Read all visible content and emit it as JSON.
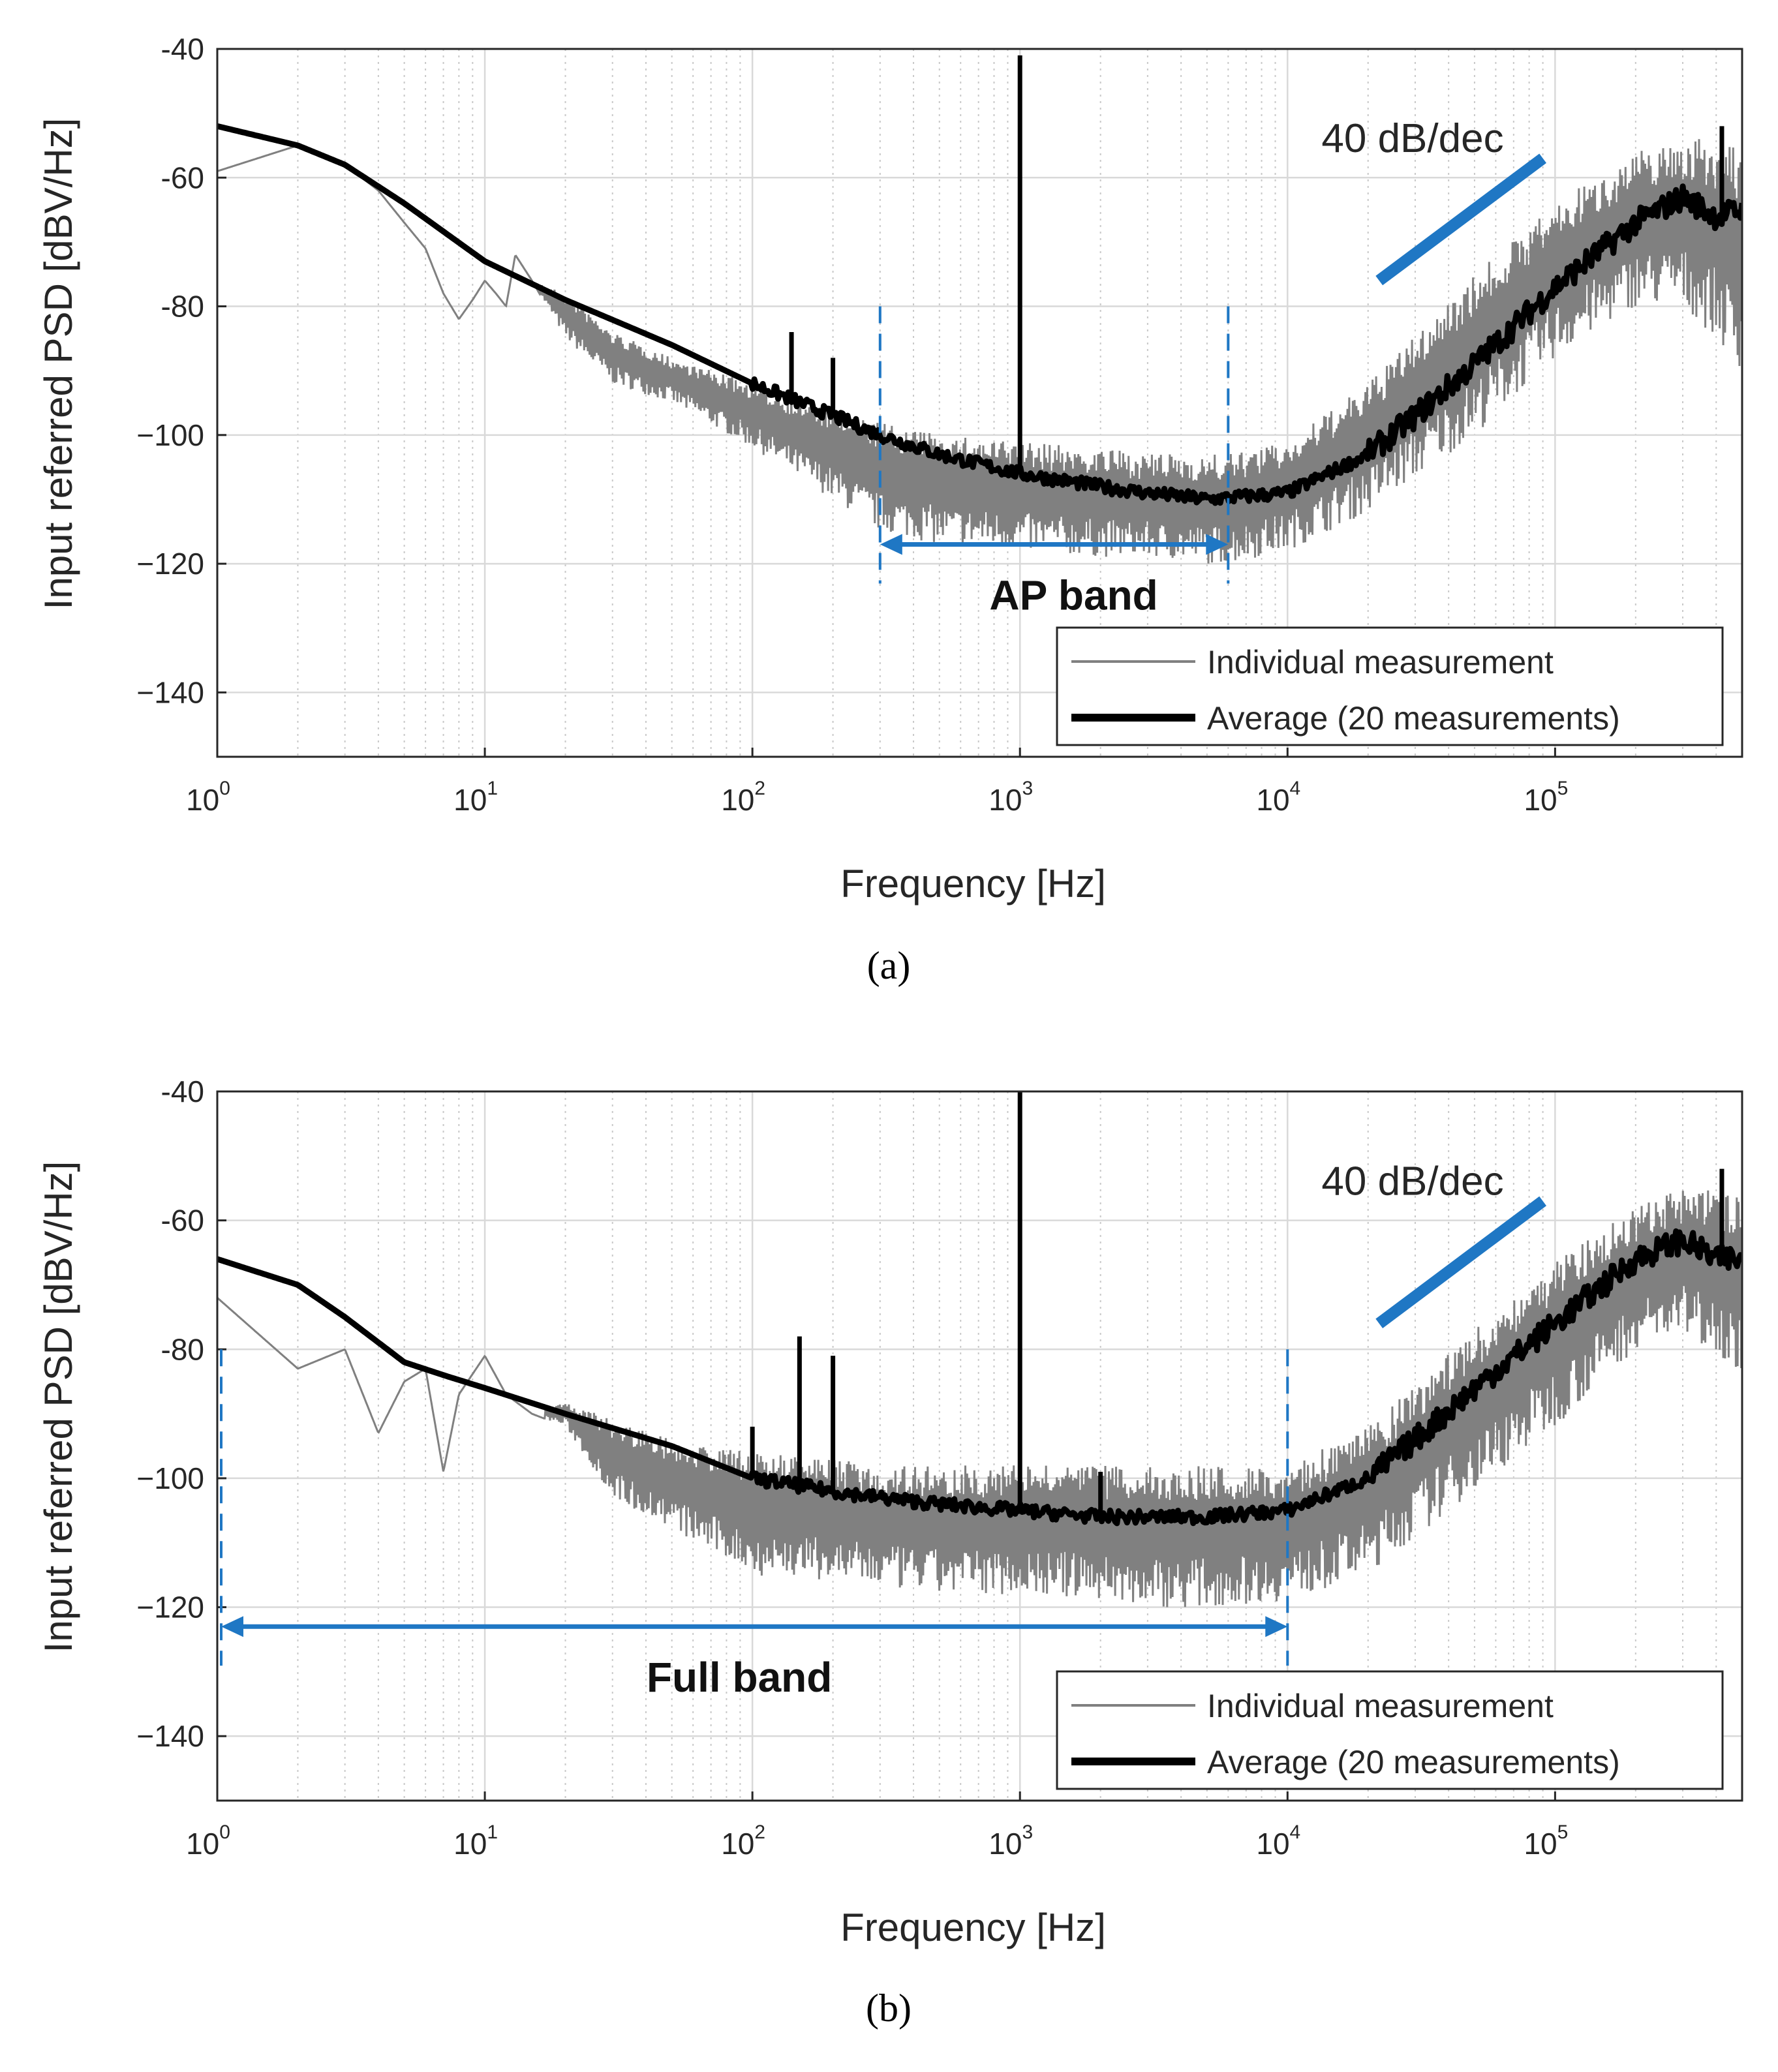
{
  "chart_data": [
    {
      "type": "line",
      "panel": "a",
      "caption": "(a)",
      "xlabel": "Frequency [Hz]",
      "ylabel": "Input referred PSD [dBV/Hz]",
      "xscale": "log",
      "xlim": [
        1,
        500000
      ],
      "ylim": [
        -150,
        -40
      ],
      "yticks": [
        -40,
        -60,
        -80,
        -100,
        -120,
        -140
      ],
      "xtick_labels": [
        {
          "base": "10",
          "exp": "0"
        },
        {
          "base": "10",
          "exp": "1"
        },
        {
          "base": "10",
          "exp": "2"
        },
        {
          "base": "10",
          "exp": "3"
        },
        {
          "base": "10",
          "exp": "4"
        },
        {
          "base": "10",
          "exp": "5"
        }
      ],
      "grid": true,
      "legend": {
        "position": "bottom-right",
        "entries": [
          "Individual measurement",
          "Average (20 measurements)"
        ]
      },
      "series": [
        {
          "name": "Individual measurement",
          "color": "#808080",
          "x": [
            1,
            2,
            3,
            4,
            5,
            6,
            7,
            8,
            9,
            10,
            11,
            12,
            13,
            15,
            20,
            30,
            50,
            100,
            200,
            300,
            500,
            1000,
            2000,
            3000,
            5000,
            6000,
            10000,
            20000,
            50000,
            100000,
            200000,
            300000,
            400000,
            500000
          ],
          "values": [
            -59,
            -55,
            -58,
            -62,
            -67,
            -71,
            -78,
            -82,
            -79,
            -76,
            -78,
            -80,
            -72,
            -76,
            -85,
            -92,
            -95,
            -102,
            -110,
            -115,
            -117,
            -118,
            -119,
            -119,
            -120,
            -120,
            -118,
            -112,
            -100,
            -88,
            -80,
            -80,
            -85,
            -90
          ],
          "band_upper": [
            -59,
            -55,
            -58,
            -62,
            -67,
            -71,
            -78,
            -82,
            -79,
            -76,
            -78,
            -80,
            -72,
            -76,
            -78,
            -84,
            -88,
            -92,
            -96,
            -98,
            -100,
            -101,
            -102,
            -103,
            -103,
            -103,
            -101,
            -92,
            -75,
            -64,
            -56,
            -54,
            -54,
            -56
          ]
        },
        {
          "name": "Average (20 measurements)",
          "color": "#000000",
          "x": [
            1,
            2,
            3,
            5,
            10,
            20,
            50,
            100,
            200,
            300,
            500,
            1000,
            2000,
            3000,
            5000,
            10000,
            20000,
            30000,
            50000,
            100000,
            200000,
            300000,
            400000,
            500000
          ],
          "values": [
            -52,
            -55,
            -58,
            -64,
            -73,
            -79,
            -86,
            -92,
            -97,
            -100,
            -103,
            -106,
            -108,
            -109,
            -110,
            -109,
            -103,
            -97,
            -89,
            -77,
            -67,
            -63,
            -66,
            -65
          ],
          "peaks": [
            {
              "x": 140,
              "value": -84
            },
            {
              "x": 200,
              "value": -88
            },
            {
              "x": 1000,
              "value": -41
            },
            {
              "x": 420000,
              "value": -52
            }
          ]
        }
      ],
      "annotations": [
        {
          "text": "40 dB/dec",
          "type": "slope-line",
          "x": [
            22000,
            90000
          ],
          "y": [
            -76,
            -57
          ]
        },
        {
          "text": "AP band",
          "type": "band",
          "range": [
            300,
            6000
          ],
          "arrow_y": -117
        }
      ]
    },
    {
      "type": "line",
      "panel": "b",
      "caption": "(b)",
      "xlabel": "Frequency [Hz]",
      "ylabel": "Input referred PSD [dBV/Hz]",
      "xscale": "log",
      "xlim": [
        1,
        500000
      ],
      "ylim": [
        -150,
        -40
      ],
      "yticks": [
        -40,
        -60,
        -80,
        -100,
        -120,
        -140
      ],
      "xtick_labels": [
        {
          "base": "10",
          "exp": "0"
        },
        {
          "base": "10",
          "exp": "1"
        },
        {
          "base": "10",
          "exp": "2"
        },
        {
          "base": "10",
          "exp": "3"
        },
        {
          "base": "10",
          "exp": "4"
        },
        {
          "base": "10",
          "exp": "5"
        }
      ],
      "grid": true,
      "legend": {
        "position": "bottom-right",
        "entries": [
          "Individual measurement",
          "Average (20 measurements)"
        ]
      },
      "series": [
        {
          "name": "Individual measurement",
          "color": "#808080",
          "x": [
            1,
            2,
            3,
            4,
            5,
            6,
            7,
            8,
            10,
            12,
            15,
            20,
            30,
            50,
            100,
            200,
            300,
            500,
            1000,
            2000,
            3000,
            5000,
            10000,
            20000,
            50000,
            100000,
            200000,
            300000,
            400000,
            500000
          ],
          "values": [
            -72,
            -83,
            -80,
            -93,
            -85,
            -83,
            -99,
            -87,
            -81,
            -87,
            -90,
            -92,
            -103,
            -108,
            -115,
            -116,
            -117,
            -118,
            -118,
            -119,
            -120,
            -120,
            -119,
            -115,
            -102,
            -92,
            -80,
            -78,
            -80,
            -85
          ],
          "band_upper": [
            -72,
            -83,
            -80,
            -93,
            -85,
            -83,
            -99,
            -87,
            -81,
            -87,
            -90,
            -88,
            -91,
            -94,
            -96,
            -97,
            -98,
            -98,
            -98,
            -98,
            -98,
            -98,
            -98,
            -92,
            -77,
            -66,
            -58,
            -55,
            -55,
            -56
          ]
        },
        {
          "name": "Average (20 measurements)",
          "color": "#000000",
          "x": [
            1,
            2,
            3,
            5,
            7,
            10,
            20,
            50,
            100,
            200,
            300,
            500,
            1000,
            2000,
            3000,
            5000,
            10000,
            20000,
            30000,
            50000,
            100000,
            200000,
            300000,
            400000,
            500000
          ],
          "values": [
            -66,
            -70,
            -75,
            -82,
            -84,
            -86,
            -90,
            -95,
            -100,
            -102,
            -103,
            -104,
            -105,
            -106,
            -106,
            -106,
            -105,
            -100,
            -94,
            -86,
            -76,
            -66,
            -63,
            -66,
            -66
          ],
          "peaks": [
            {
              "x": 150,
              "value": -78
            },
            {
              "x": 200,
              "value": -81
            },
            {
              "x": 100,
              "value": -92
            },
            {
              "x": 1000,
              "value": -40
            },
            {
              "x": 2000,
              "value": -99
            },
            {
              "x": 420000,
              "value": -52
            }
          ]
        }
      ],
      "annotations": [
        {
          "text": "40 dB/dec",
          "type": "slope-line",
          "x": [
            22000,
            90000
          ],
          "y": [
            -76,
            -57
          ]
        },
        {
          "text": "Full band",
          "type": "band",
          "range": [
            1,
            10000
          ],
          "arrow_y": -123
        }
      ]
    }
  ]
}
